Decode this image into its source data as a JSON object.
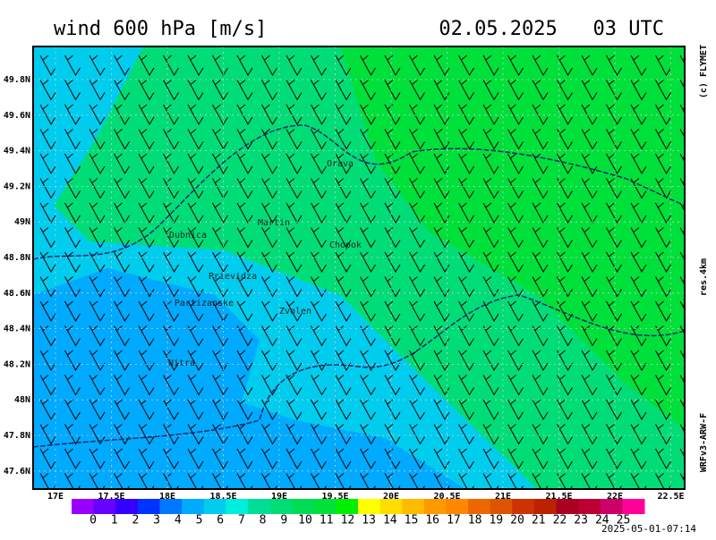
{
  "header": {
    "title": "wind 600 hPa [m/s]",
    "date": "02.05.2025   03 UTC"
  },
  "side": {
    "copyright": "(c) FLYMET",
    "resolution": "res.4km",
    "model": "WRFv3-ARW-F"
  },
  "axes": {
    "lat": [
      "49.8N",
      "49.6N",
      "49.4N",
      "49.2N",
      "49N",
      "48.8N",
      "48.6N",
      "48.4N",
      "48.2N",
      "48N",
      "47.8N",
      "47.6N"
    ],
    "lon": [
      "17E",
      "17.5E",
      "18E",
      "18.5E",
      "19E",
      "19.5E",
      "20E",
      "20.5E",
      "21E",
      "21.5E",
      "22E",
      "22.5E"
    ]
  },
  "cities": [
    "Orava",
    "Martin",
    "Dubnica",
    "Chopok",
    "Prievidza",
    "Partizanske",
    "Zvolen",
    "Nitra"
  ],
  "colorbar": {
    "labels": [
      0,
      1,
      2,
      3,
      4,
      5,
      6,
      7,
      8,
      9,
      10,
      11,
      12,
      13,
      14,
      15,
      16,
      17,
      18,
      19,
      20,
      21,
      22,
      23,
      24,
      25
    ]
  },
  "footer": {
    "timestamp": "2025-05-01-07:14"
  }
}
